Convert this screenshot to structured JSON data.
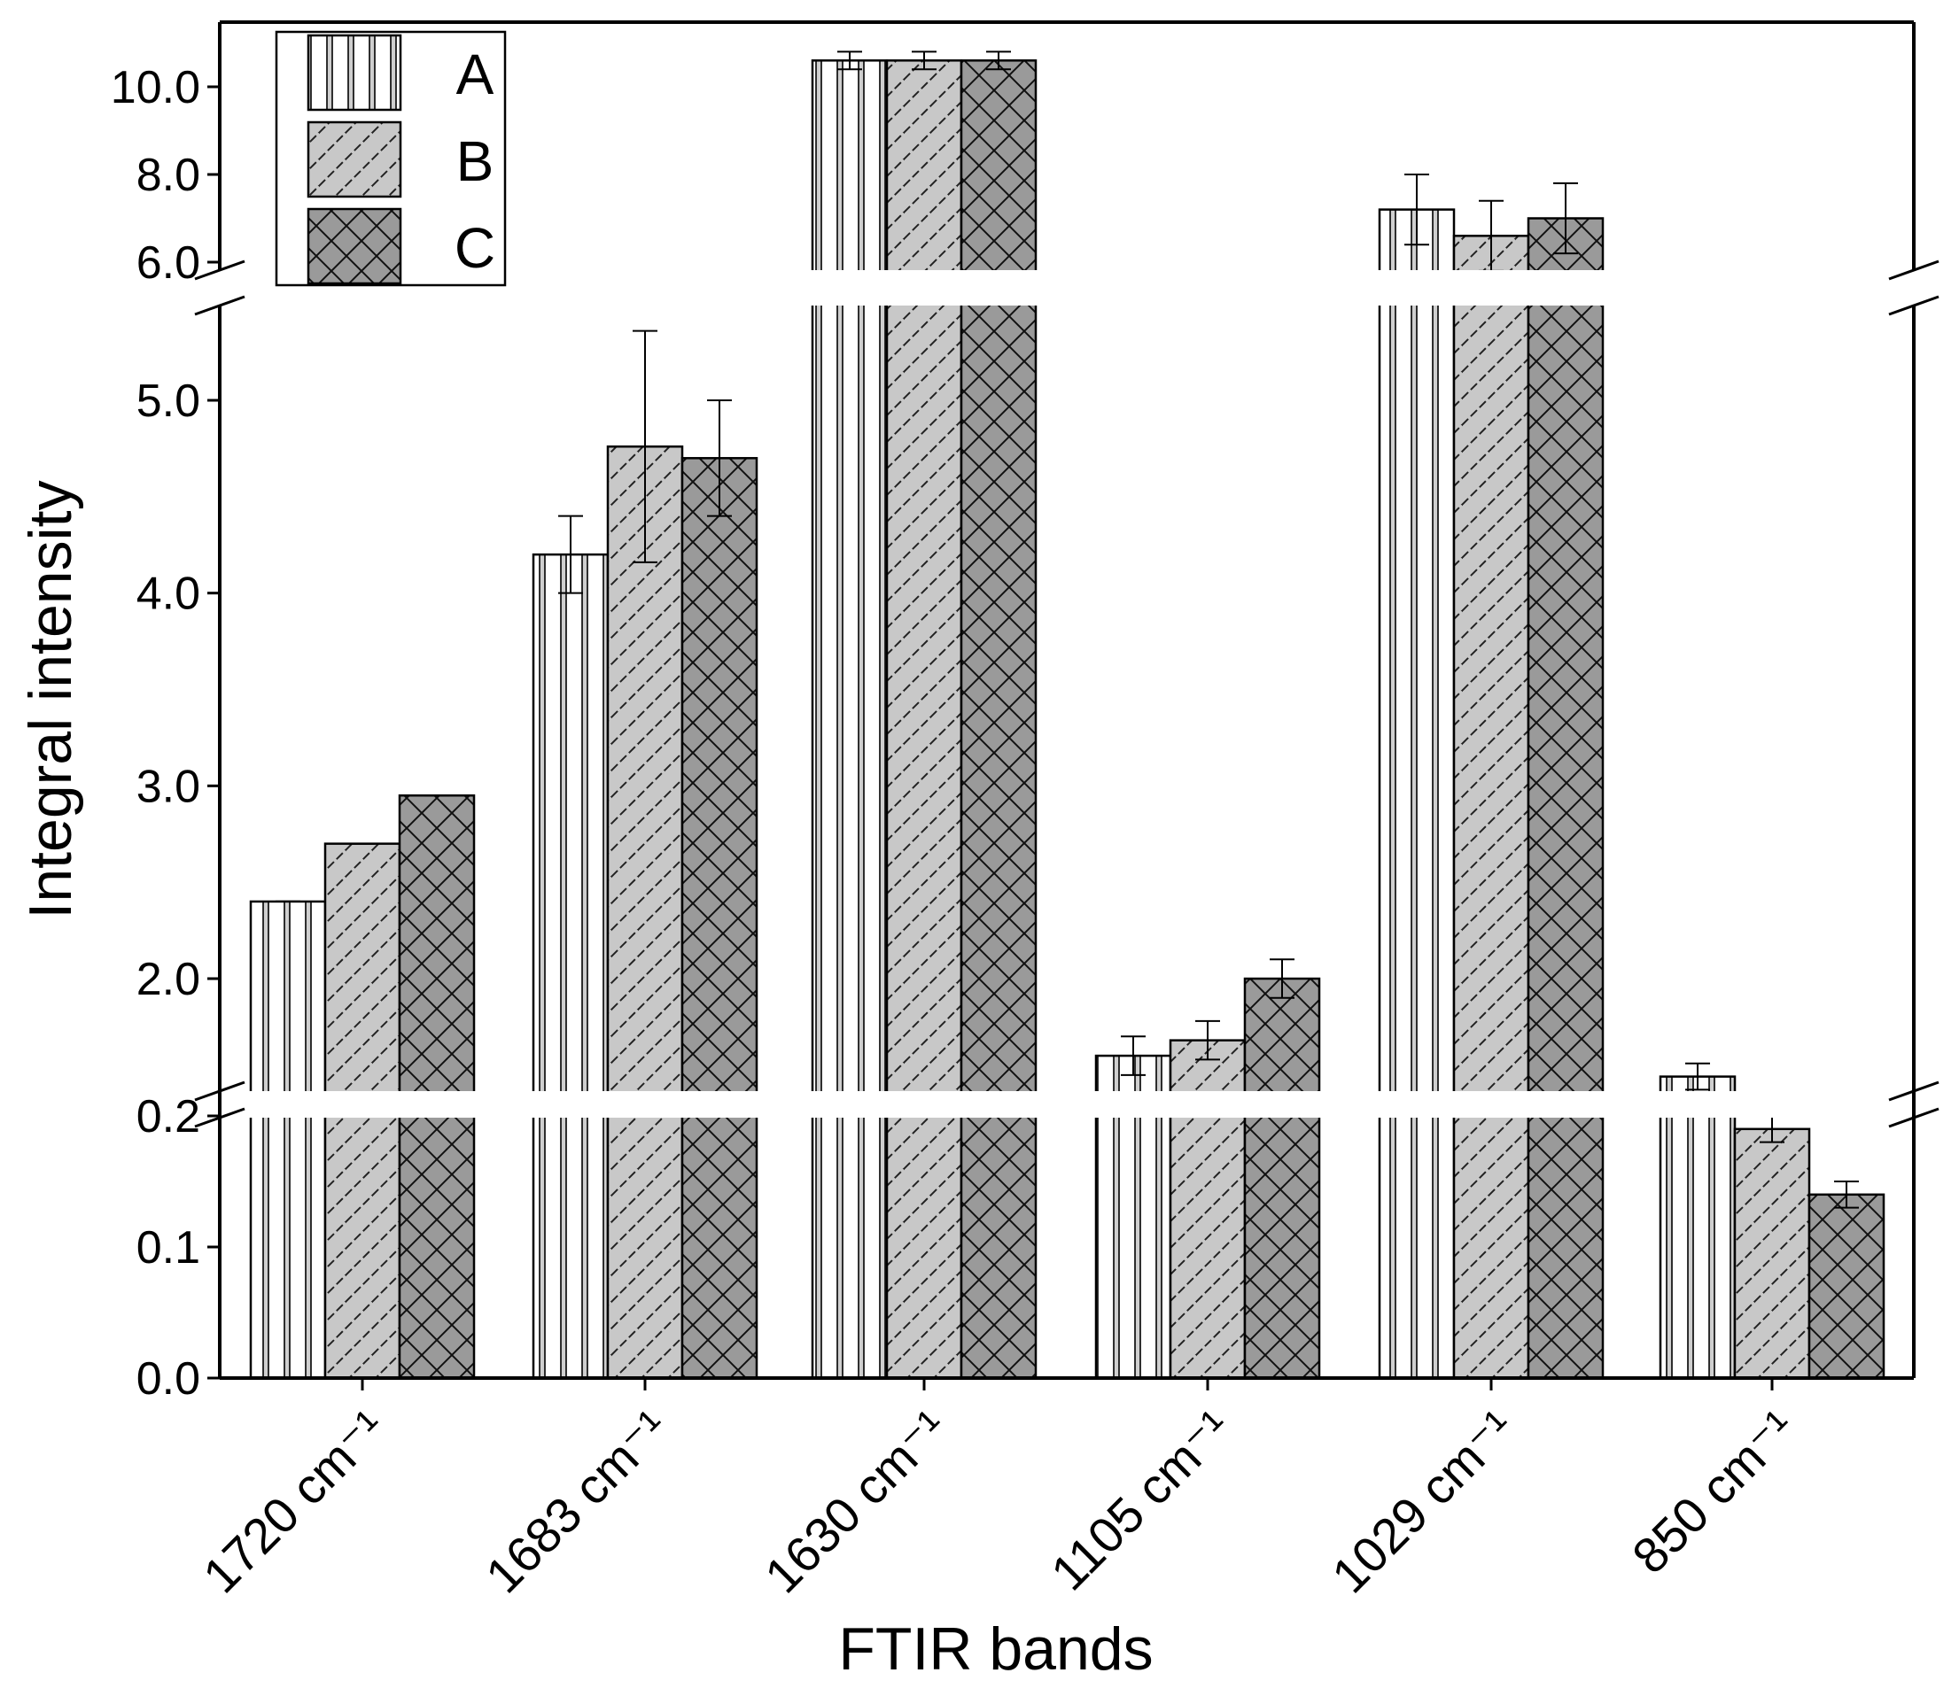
{
  "chart_data": {
    "type": "bar",
    "title": "",
    "xlabel": "FTIR bands",
    "ylabel": "Integral intensity",
    "categories": [
      "1720 cm⁻¹",
      "1683 cm⁻¹",
      "1630 cm⁻¹",
      "1105 cm⁻¹",
      "1029 cm⁻¹",
      "850 cm⁻¹"
    ],
    "series": [
      {
        "name": "A",
        "values": [
          2.4,
          4.2,
          10.6,
          1.6,
          7.2,
          0.23
        ],
        "errors": [
          0.0,
          0.2,
          0.2,
          0.1,
          0.8,
          0.01
        ]
      },
      {
        "name": "B",
        "values": [
          2.7,
          4.76,
          10.6,
          1.68,
          6.6,
          0.19
        ],
        "errors": [
          0.0,
          0.6,
          0.2,
          0.1,
          0.8,
          0.01
        ]
      },
      {
        "name": "C",
        "values": [
          2.95,
          4.7,
          10.6,
          2.0,
          7.0,
          0.14
        ],
        "errors": [
          0.0,
          0.3,
          0.2,
          0.1,
          0.8,
          0.01
        ]
      }
    ],
    "y_axis_segments": [
      {
        "range": [
          0.0,
          0.25
        ],
        "ticks": [
          "0.0",
          "0.1",
          "0.2"
        ]
      },
      {
        "range": [
          1.4,
          5.5
        ],
        "ticks": [
          "2.0",
          "3.0",
          "4.0",
          "5.0"
        ]
      },
      {
        "range": [
          5.8,
          11.5
        ],
        "ticks": [
          "6.0",
          "8.0",
          "10.0"
        ]
      }
    ],
    "broken_axis": true,
    "grid": false,
    "legend_position": "top-left",
    "fill_colors": {
      "A": "#ffffff",
      "B": "#c8c8c8",
      "C": "#9a9a9a"
    }
  }
}
